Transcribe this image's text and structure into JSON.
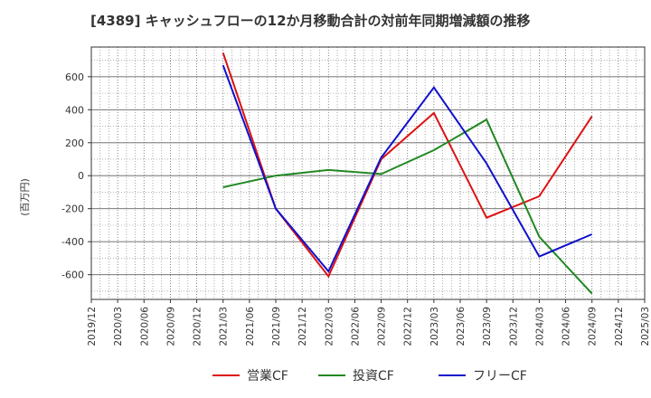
{
  "chart_data": {
    "type": "line",
    "title": "[4389]  キャッシュフローの12か月移動合計の対前年同期増減額の推移",
    "ylabel": "(百万円)",
    "xlabel": "",
    "x": [
      "2019/12",
      "2020/03",
      "2020/06",
      "2020/09",
      "2020/12",
      "2021/03",
      "2021/06",
      "2021/09",
      "2021/12",
      "2022/03",
      "2022/06",
      "2022/09",
      "2022/12",
      "2023/03",
      "2023/06",
      "2023/09",
      "2023/12",
      "2024/03",
      "2024/06",
      "2024/09",
      "2024/12",
      "2025/03"
    ],
    "ylim": [
      -750,
      780
    ],
    "yticks": [
      -600,
      -400,
      -200,
      0,
      200,
      400,
      600
    ],
    "grid": true,
    "legend": "bottom",
    "series": [
      {
        "name": "営業CF",
        "color": "#dd1111",
        "values": [
          null,
          null,
          null,
          null,
          null,
          745,
          null,
          -200,
          null,
          -610,
          null,
          100,
          null,
          380,
          null,
          -255,
          null,
          -125,
          null,
          360,
          null,
          null
        ]
      },
      {
        "name": "投資CF",
        "color": "#228822",
        "values": [
          null,
          null,
          null,
          null,
          null,
          -70,
          null,
          0,
          null,
          35,
          null,
          10,
          null,
          155,
          null,
          340,
          null,
          -370,
          null,
          -715,
          null,
          null
        ]
      },
      {
        "name": "フリーCF",
        "color": "#1111cc",
        "values": [
          null,
          null,
          null,
          null,
          null,
          670,
          null,
          -200,
          null,
          -580,
          null,
          110,
          null,
          535,
          null,
          75,
          null,
          -490,
          null,
          -355,
          null,
          null
        ]
      }
    ]
  }
}
